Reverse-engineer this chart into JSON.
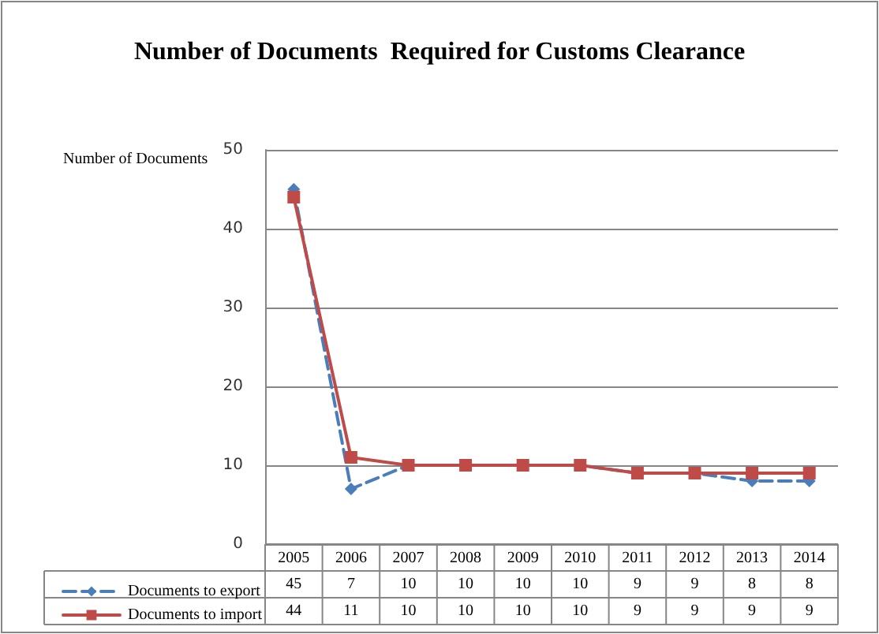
{
  "chart_data": {
    "type": "line",
    "title": "Number of Documents  Required for Customs Clearance",
    "ylabel": "Number of Documents",
    "categories": [
      "2005",
      "2006",
      "2007",
      "2008",
      "2009",
      "2010",
      "2011",
      "2012",
      "2013",
      "2014"
    ],
    "series": [
      {
        "name": "Documents to export",
        "color": "#4a7ebb",
        "marker": "diamond",
        "line_style": "dashed",
        "values": [
          45,
          7,
          10,
          10,
          10,
          10,
          9,
          9,
          8,
          8
        ]
      },
      {
        "name": "Documents to import",
        "color": "#be4b48",
        "marker": "square",
        "line_style": "solid",
        "values": [
          44,
          11,
          10,
          10,
          10,
          10,
          9,
          9,
          9,
          9
        ]
      }
    ],
    "ylim": [
      0,
      50
    ],
    "yticks": [
      0,
      10,
      20,
      30,
      40,
      50
    ],
    "grid": "y",
    "legend": "bottom",
    "data_labels": true
  }
}
